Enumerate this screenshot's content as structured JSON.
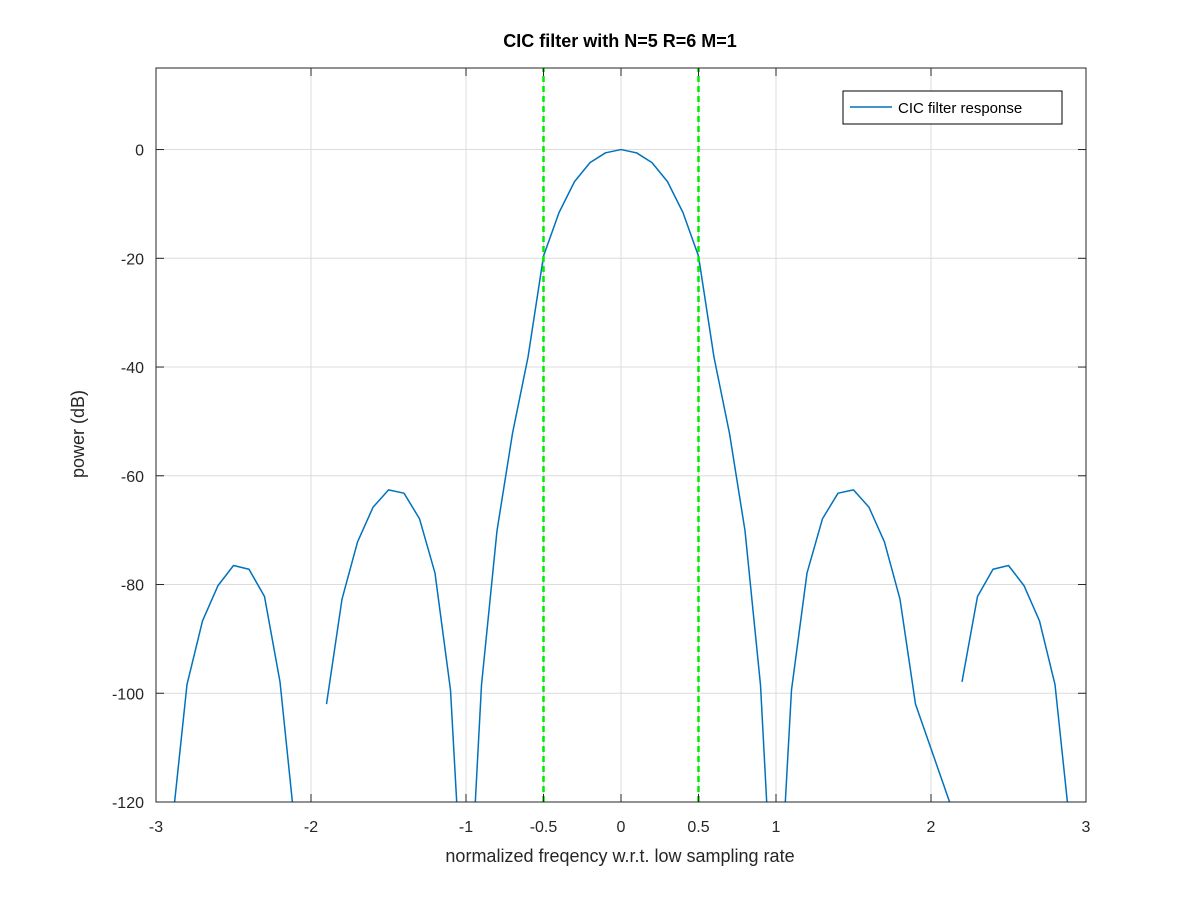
{
  "chart_data": {
    "type": "line",
    "title": "CIC filter with N=5 R=6 M=1",
    "xlabel": "normalized freqency w.r.t. low sampling rate",
    "ylabel": "power (dB)",
    "xlim": [
      -3,
      3
    ],
    "ylim": [
      -120,
      15
    ],
    "grid": true,
    "legend_position": "top-right",
    "x_ticks": [
      -3,
      -2,
      -1,
      -0.5,
      0,
      0.5,
      1,
      2,
      3
    ],
    "x_tick_labels": [
      "-3",
      "-2",
      "-1",
      "-0.5",
      "0",
      "0.5",
      "1",
      "2",
      "3"
    ],
    "y_ticks": [
      -120,
      -100,
      -80,
      -60,
      -40,
      -20,
      0
    ],
    "y_tick_labels": [
      "-120",
      "-100",
      "-80",
      "-60",
      "-40",
      "-20",
      "0"
    ],
    "series": [
      {
        "name": "CIC filter response",
        "color": "#0072bd",
        "style": "solid",
        "formula": "20*log10(|sin(pi*f)/(R*sin(pi*f/R))|^N) with N=5, R=6",
        "x": [
          -2.88,
          -2.8,
          -2.7,
          -2.6,
          -2.5,
          -2.4,
          -2.3,
          -2.2,
          -2.12,
          -1.9,
          -1.8,
          -1.7,
          -1.6,
          -1.5,
          -1.4,
          -1.3,
          -1.2,
          -1.1,
          -1.06,
          -0.94,
          -0.9,
          -0.8,
          -0.7,
          -0.6,
          -0.5,
          -0.4,
          -0.3,
          -0.2,
          -0.1,
          0.0,
          0.1,
          0.2,
          0.3,
          0.4,
          0.5,
          0.6,
          0.7,
          0.8,
          0.9,
          0.94,
          1.06,
          1.1,
          1.2,
          1.3,
          1.4,
          1.5,
          1.6,
          1.7,
          1.8,
          1.9,
          2.12,
          2.2,
          2.3,
          2.4,
          2.5,
          2.6,
          2.7,
          2.8,
          2.88
        ],
        "y": [
          -120.0,
          -98.4,
          -86.7,
          -80.2,
          -76.5,
          -77.2,
          -82.2,
          -97.9,
          -120.0,
          -102.0,
          -82.7,
          -72.2,
          -65.8,
          -62.6,
          -63.2,
          -67.9,
          -77.9,
          -99.4,
          -120.0,
          -120.0,
          -98.5,
          -70.1,
          -52.2,
          -38.2,
          -19.6,
          -11.6,
          -5.9,
          -2.4,
          -0.6,
          0.0,
          -0.6,
          -2.4,
          -5.9,
          -11.6,
          -19.6,
          -38.2,
          -52.2,
          -70.1,
          -98.5,
          -120.0,
          -120.0,
          -99.4,
          -77.9,
          -67.9,
          -63.2,
          -62.6,
          -65.8,
          -72.2,
          -82.7,
          -102.0,
          -120.0,
          -97.9,
          -82.2,
          -77.2,
          -76.5,
          -80.2,
          -86.7,
          -98.4,
          -120.0
        ]
      },
      {
        "color": "#00ee00",
        "style": "dashed",
        "x": [
          -0.5,
          -0.5
        ],
        "y": [
          -120,
          15
        ]
      },
      {
        "color": "#00ee00",
        "style": "dashed",
        "x": [
          0.5,
          0.5
        ],
        "y": [
          -120,
          15
        ]
      }
    ]
  }
}
